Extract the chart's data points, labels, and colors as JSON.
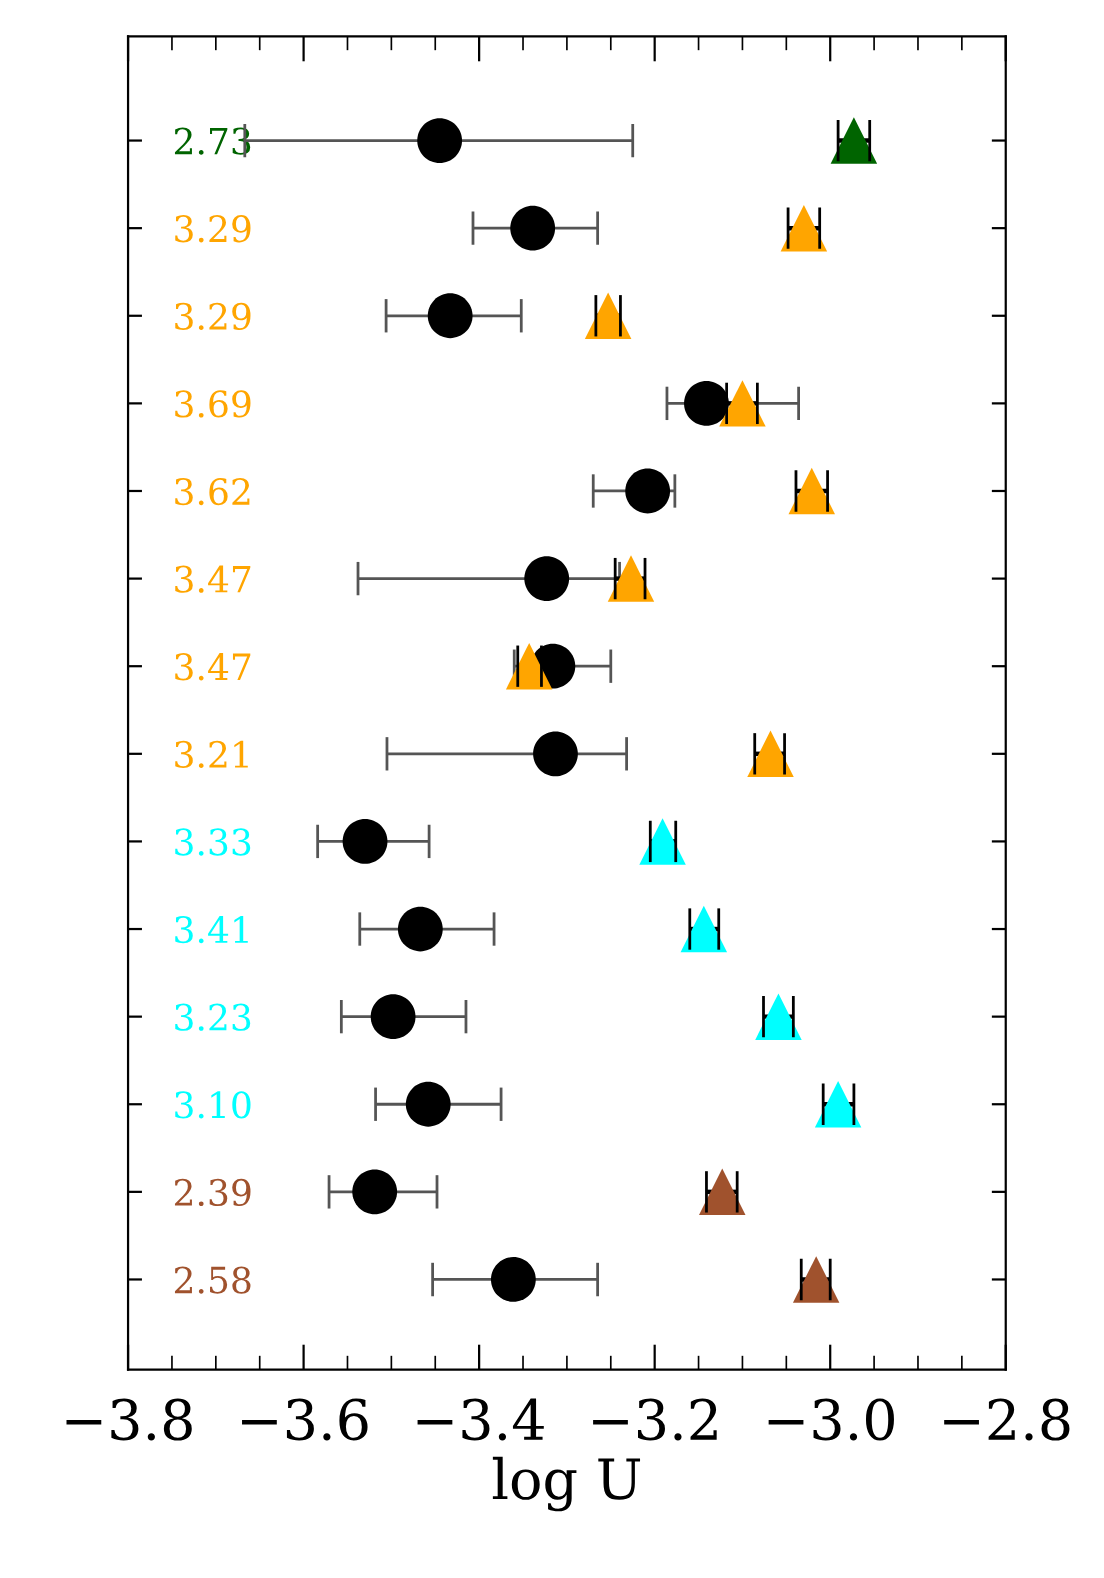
{
  "chart_data": {
    "type": "scatter",
    "orientation": "horizontal",
    "xlabel": "log U",
    "categories": [
      "2.73",
      "3.29",
      "3.29",
      "3.69",
      "3.62",
      "3.47",
      "3.47",
      "3.21",
      "3.33",
      "3.41",
      "3.23",
      "3.10",
      "2.39",
      "2.58"
    ],
    "series": [
      {
        "color": "#000000",
        "marker": "circle",
        "values": [
          -3.445,
          -3.339,
          -3.433,
          -3.141,
          -3.208,
          -3.323,
          -3.316,
          -3.313,
          -3.53,
          -3.467,
          -3.498,
          -3.458,
          -3.519,
          -3.361
        ],
        "errors": [
          [
            -3.667,
            -3.225
          ],
          [
            -3.407,
            -3.265
          ],
          [
            -3.506,
            -3.352
          ],
          [
            -3.186,
            -3.036
          ],
          [
            -3.27,
            -3.177
          ],
          [
            -3.538,
            -3.24
          ],
          [
            -3.36,
            -3.25
          ],
          [
            -3.505,
            -3.232
          ],
          [
            -3.584,
            -3.457
          ],
          [
            -3.536,
            -3.383
          ],
          [
            -3.557,
            -3.415
          ],
          [
            -3.518,
            -3.375
          ],
          [
            -3.571,
            -3.448
          ],
          [
            -3.453,
            -3.265
          ]
        ]
      },
      {
        "marker": "triangle",
        "colors": [
          "#006400",
          "#ffa500",
          "#ffa500",
          "#ffa500",
          "#ffa500",
          "#ffa500",
          "#ffa500",
          "#ffa500",
          "#00ffff",
          "#00ffff",
          "#00ffff",
          "#00ffff",
          "#a0522d",
          "#a0522d"
        ],
        "values": [
          -2.973,
          -3.03,
          -3.253,
          -3.1,
          -3.021,
          -3.227,
          -3.343,
          -3.068,
          -3.191,
          -3.144,
          -3.059,
          -2.991,
          -3.123,
          -3.016
        ],
        "errors": [
          [
            -2.991,
            -2.955
          ],
          [
            -3.048,
            -3.012
          ],
          [
            -3.267,
            -3.239
          ],
          [
            -3.118,
            -3.083
          ],
          [
            -3.039,
            -3.003
          ],
          [
            -3.245,
            -3.211
          ],
          [
            -3.356,
            -3.329
          ],
          [
            -3.086,
            -3.052
          ],
          [
            -3.205,
            -3.176
          ],
          [
            -3.16,
            -3.127
          ],
          [
            -3.076,
            -3.042
          ],
          [
            -3.008,
            -2.973
          ],
          [
            -3.141,
            -3.106
          ],
          [
            -3.033,
            -3.0
          ]
        ]
      }
    ],
    "xlim": [
      -3.8,
      -2.8
    ],
    "xticks": [
      {
        "value": -3.8,
        "label": "−3.8"
      },
      {
        "value": -3.6,
        "label": "−3.6"
      },
      {
        "value": -3.4,
        "label": "−3.4"
      },
      {
        "value": -3.2,
        "label": "−3.2"
      },
      {
        "value": -3.0,
        "label": "−3.0"
      },
      {
        "value": -2.8,
        "label": "−2.8"
      }
    ],
    "legend": false,
    "grid": false
  }
}
